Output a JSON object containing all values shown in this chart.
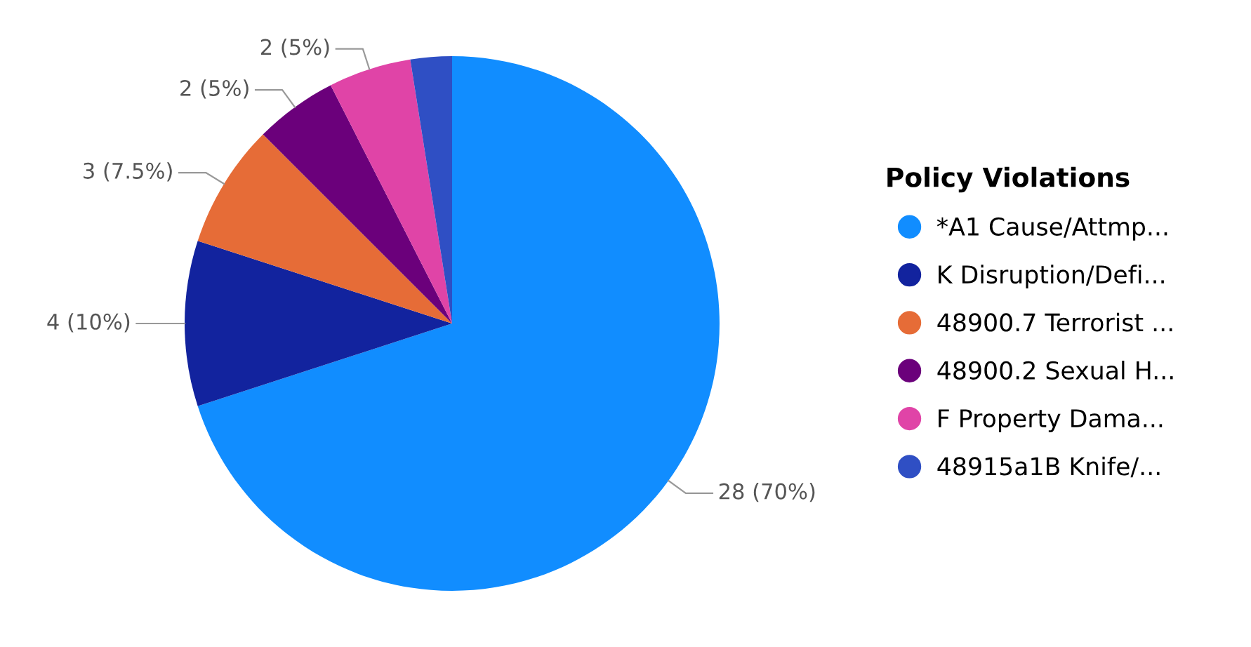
{
  "chart_data": {
    "type": "pie",
    "legend_title": "Policy Violations",
    "categories": [
      "*A1 Cause/Attmp...",
      "K Disruption/Defi...",
      "48900.7 Terrorist ...",
      "48900.2 Sexual H...",
      "F Property Dama...",
      "48915a1B Knife/..."
    ],
    "values": [
      28,
      4,
      3,
      2,
      2,
      1
    ],
    "colors": [
      "#118dff",
      "#12239e",
      "#e66c37",
      "#6b007b",
      "#e044a7",
      "#2f4fc4"
    ],
    "value_labels": [
      "28 (70%)",
      "4 (10%)",
      "3 (7.5%)",
      "2 (5%)",
      "2 (5%)",
      null
    ],
    "legend": "right"
  }
}
